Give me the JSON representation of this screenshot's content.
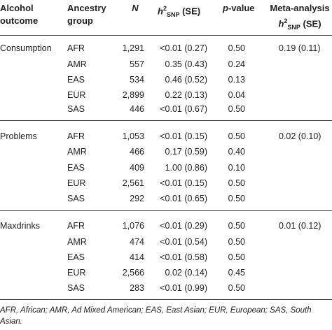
{
  "headers": {
    "outcome_line1": "Alcohol",
    "outcome_line2": "outcome",
    "ancestry_line1": "Ancestry",
    "ancestry_line2": "group",
    "n": "N",
    "h2_base": "h",
    "h2_sup": "2",
    "h2_sub": "SNP",
    "h2_se": " (SE)",
    "pvalue_italic": "p",
    "pvalue_rest": "-value",
    "meta_line1": "Meta-analysis",
    "meta_h": "h",
    "meta_sup": "2",
    "meta_sub": "SNP",
    "meta_se": " (SE)"
  },
  "groups": [
    {
      "outcome": "Consumption",
      "meta": "0.19 (0.11)",
      "rows": [
        {
          "ancestry": "AFR",
          "n": "1,291",
          "h2": "<0.01 (0.27)",
          "p": "0.50"
        },
        {
          "ancestry": "AMR",
          "n": "557",
          "h2": "0.35 (0.43)",
          "p": "0.24"
        },
        {
          "ancestry": "EAS",
          "n": "534",
          "h2": "0.46 (0.52)",
          "p": "0.13"
        },
        {
          "ancestry": "EUR",
          "n": "2,899",
          "h2": "0.22 (0.13)",
          "p": "0.04"
        },
        {
          "ancestry": "SAS",
          "n": "446",
          "h2": "<0.01 (0.67)",
          "p": "0.50"
        }
      ]
    },
    {
      "outcome": "Problems",
      "meta": "0.02 (0.10)",
      "rows": [
        {
          "ancestry": "AFR",
          "n": "1,053",
          "h2": "<0.01 (0.15)",
          "p": "0.50"
        },
        {
          "ancestry": "AMR",
          "n": "466",
          "h2": "0.17 (0.59)",
          "p": "0.40"
        },
        {
          "ancestry": "EAS",
          "n": "409",
          "h2": "1.00 (0.86)",
          "p": "0.10"
        },
        {
          "ancestry": "EUR",
          "n": "2,561",
          "h2": "<0.01 (0.15)",
          "p": "0.50"
        },
        {
          "ancestry": "SAS",
          "n": "292",
          "h2": "<0.01 (0.65)",
          "p": "0.50"
        }
      ]
    },
    {
      "outcome": "Maxdrinks",
      "meta": "0.01 (0.12)",
      "rows": [
        {
          "ancestry": "AFR",
          "n": "1,076",
          "h2": "<0.01 (0.29)",
          "p": "0.50"
        },
        {
          "ancestry": "AMR",
          "n": "474",
          "h2": "<0.01 (0.54)",
          "p": "0.50"
        },
        {
          "ancestry": "EAS",
          "n": "414",
          "h2": "<0.01 (0.58)",
          "p": "0.50"
        },
        {
          "ancestry": "EUR",
          "n": "2,566",
          "h2": "0.02 (0.14)",
          "p": "0.45"
        },
        {
          "ancestry": "SAS",
          "n": "283",
          "h2": "<0.01 (0.99)",
          "p": "0.50"
        }
      ]
    }
  ],
  "footnote": "AFR, African; AMR, Ad Mixed American; EAS, East Asian; EUR, European; SAS, South Asian."
}
